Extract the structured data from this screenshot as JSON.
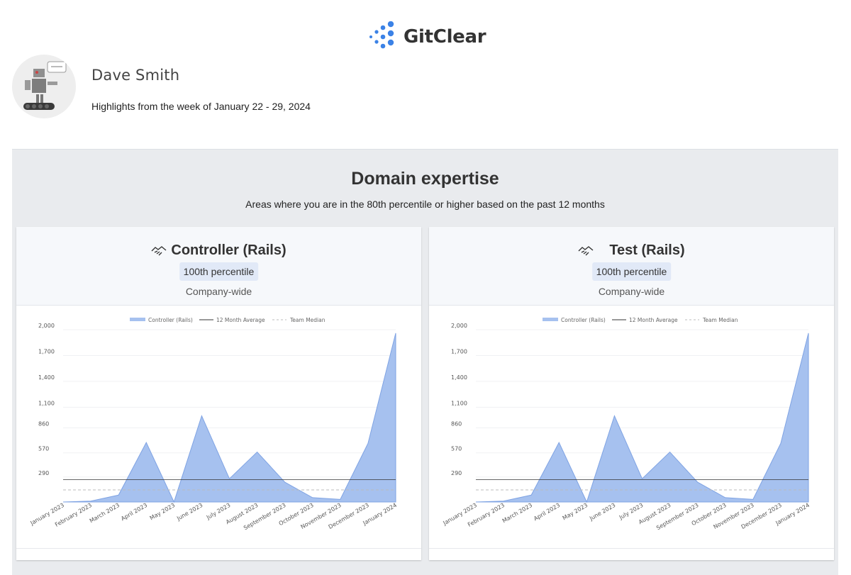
{
  "brand": {
    "name": "GitClear"
  },
  "user": {
    "name": "Dave Smith",
    "subtitle": "Highlights from the week of January 22 - 29, 2024"
  },
  "section": {
    "title": "Domain expertise",
    "subtitle": "Areas where you are in the 80th percentile or higher based on the past 12 months"
  },
  "cards": [
    {
      "icon": "handshake-icon",
      "title": "Controller (Rails)",
      "badge": "100th percentile",
      "scope": "Company-wide"
    },
    {
      "icon": "handshake-icon",
      "title": "Test (Rails)",
      "badge": "100th percentile",
      "scope": "Company-wide"
    }
  ],
  "colors": {
    "area_fill": "#a6c1ef",
    "area_stroke": "#7fa3e3",
    "average": "#333333",
    "median": "#bbbbbb",
    "logo": "#3b82e6"
  },
  "chart_data": [
    {
      "type": "area",
      "categories": [
        "January 2023",
        "February 2023",
        "March 2023",
        "April 2023",
        "May 2023",
        "June 2023",
        "July 2023",
        "August 2023",
        "September 2023",
        "October 2023",
        "November 2023",
        "December 2023",
        "January 2024"
      ],
      "series": [
        {
          "name": "Controller (Rails)",
          "values": [
            0,
            10,
            80,
            690,
            0,
            1000,
            270,
            580,
            230,
            50,
            30,
            680,
            1960
          ]
        }
      ],
      "reference_lines": [
        {
          "name": "12 Month Average",
          "value": 260,
          "style": "solid"
        },
        {
          "name": "Team Median",
          "value": 140,
          "style": "dashed"
        }
      ],
      "yticks": [
        290,
        570,
        860,
        1100,
        1400,
        1700,
        2000
      ],
      "ytick_labels": [
        "290",
        "570",
        "860",
        "1,100",
        "1,400",
        "1,700",
        "2,000"
      ],
      "ylim": [
        0,
        2000
      ],
      "legend": "top",
      "grid": true
    },
    {
      "type": "area",
      "categories": [
        "January 2023",
        "February 2023",
        "March 2023",
        "April 2023",
        "May 2023",
        "June 2023",
        "July 2023",
        "August 2023",
        "September 2023",
        "October 2023",
        "November 2023",
        "December 2023",
        "January 2024"
      ],
      "series": [
        {
          "name": "Controller (Rails)",
          "values": [
            0,
            10,
            80,
            690,
            0,
            1000,
            270,
            580,
            230,
            50,
            30,
            680,
            1960
          ]
        }
      ],
      "reference_lines": [
        {
          "name": "12 Month Average",
          "value": 260,
          "style": "solid"
        },
        {
          "name": "Team Median",
          "value": 140,
          "style": "dashed"
        }
      ],
      "yticks": [
        290,
        570,
        860,
        1100,
        1400,
        1700,
        2000
      ],
      "ytick_labels": [
        "290",
        "570",
        "860",
        "1,100",
        "1,400",
        "1,700",
        "2,000"
      ],
      "ylim": [
        0,
        2000
      ],
      "legend": "top",
      "grid": true
    }
  ]
}
